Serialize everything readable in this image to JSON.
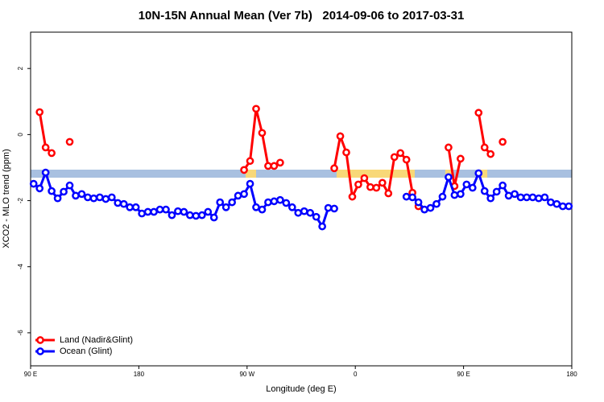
{
  "chart_data": {
    "type": "line",
    "title": "10N-15N Annual Mean (Ver 7b)   2014-09-06 to 2017-03-31",
    "xlabel": "Longitude (deg E)",
    "ylabel": "XCO2 - MLO trend (ppm)",
    "xlim": [
      90,
      540
    ],
    "ylim": [
      -7,
      3.1
    ],
    "xticks": [
      {
        "value": 90,
        "label": "90 E"
      },
      180,
      {
        "value": 270,
        "label": "90 W"
      },
      {
        "value": 360,
        "label": "0"
      },
      {
        "value": 450,
        "label": "90 E"
      },
      {
        "value": 540,
        "label": "180"
      }
    ],
    "yticks": [
      2,
      0,
      -2,
      -4,
      -6
    ],
    "legend": "bottom-left",
    "x": [
      92.5,
      97.5,
      102.5,
      107.5,
      112.5,
      117.5,
      122.5,
      127.5,
      132.5,
      137.5,
      142.5,
      147.5,
      152.5,
      157.5,
      162.5,
      167.5,
      172.5,
      177.5,
      182.5,
      187.5,
      192.5,
      197.5,
      202.5,
      207.5,
      212.5,
      217.5,
      222.5,
      227.5,
      232.5,
      237.5,
      242.5,
      247.5,
      252.5,
      257.5,
      262.5,
      267.5,
      272.5,
      277.5,
      282.5,
      287.5,
      292.5,
      297.5,
      302.5,
      307.5,
      312.5,
      317.5,
      322.5,
      327.5,
      332.5,
      337.5,
      342.5,
      347.5,
      352.5,
      357.5,
      362.5,
      367.5,
      372.5,
      377.5,
      382.5,
      387.5,
      392.5,
      397.5,
      402.5,
      407.5,
      412.5,
      417.5,
      422.5,
      427.5,
      432.5,
      437.5,
      442.5,
      447.5,
      452.5,
      457.5,
      462.5,
      467.5,
      472.5,
      477.5,
      482.5,
      487.5,
      492.5,
      497.5,
      502.5,
      507.5,
      512.5,
      517.5,
      522.5,
      527.5,
      532.5,
      537.5
    ],
    "series": [
      {
        "name": "Land (Nadir&Glint)",
        "color": "#ff0000",
        "values": [
          null,
          0.68,
          -0.39,
          -0.56,
          null,
          null,
          -0.22,
          null,
          null,
          null,
          null,
          null,
          null,
          null,
          null,
          null,
          null,
          null,
          null,
          null,
          null,
          null,
          null,
          null,
          null,
          null,
          null,
          null,
          null,
          null,
          null,
          null,
          null,
          null,
          null,
          -1.07,
          -0.8,
          0.78,
          0.05,
          -0.95,
          -0.95,
          -0.85,
          null,
          null,
          null,
          null,
          null,
          null,
          null,
          null,
          -1.02,
          -0.05,
          -0.54,
          -1.88,
          -1.51,
          -1.32,
          -1.59,
          -1.61,
          -1.46,
          -1.78,
          -0.68,
          -0.56,
          -0.76,
          -1.76,
          -2.17,
          null,
          null,
          null,
          null,
          -0.39,
          -1.56,
          -0.73,
          null,
          null,
          0.66,
          -0.39,
          -0.59,
          null,
          -0.22,
          null,
          null,
          null,
          null,
          null,
          null,
          null,
          null,
          null,
          null,
          null
        ]
      },
      {
        "name": "Ocean (Glint)",
        "color": "#0000ff",
        "values": [
          -1.49,
          -1.63,
          -1.15,
          -1.71,
          -1.93,
          -1.73,
          -1.54,
          -1.85,
          -1.8,
          -1.9,
          -1.93,
          -1.9,
          -1.95,
          -1.9,
          -2.07,
          -2.1,
          -2.2,
          -2.2,
          -2.39,
          -2.34,
          -2.34,
          -2.27,
          -2.27,
          -2.44,
          -2.32,
          -2.34,
          -2.44,
          -2.46,
          -2.44,
          -2.34,
          -2.51,
          -2.05,
          -2.2,
          -2.05,
          -1.85,
          -1.8,
          -1.49,
          -2.2,
          -2.27,
          -2.05,
          -2.02,
          -1.98,
          -2.07,
          -2.2,
          -2.37,
          -2.32,
          -2.37,
          -2.49,
          -2.78,
          -2.22,
          -2.24,
          null,
          null,
          null,
          null,
          null,
          null,
          null,
          null,
          null,
          null,
          null,
          -1.88,
          -1.9,
          -2.05,
          -2.27,
          -2.22,
          -2.1,
          -1.88,
          -1.29,
          -1.83,
          -1.8,
          -1.51,
          -1.61,
          -1.17,
          -1.71,
          -1.93,
          -1.73,
          -1.54,
          -1.85,
          -1.8,
          -1.9,
          -1.9,
          -1.9,
          -1.93,
          -1.9,
          -2.05,
          -2.1,
          -2.17,
          -2.17
        ]
      }
    ]
  }
}
